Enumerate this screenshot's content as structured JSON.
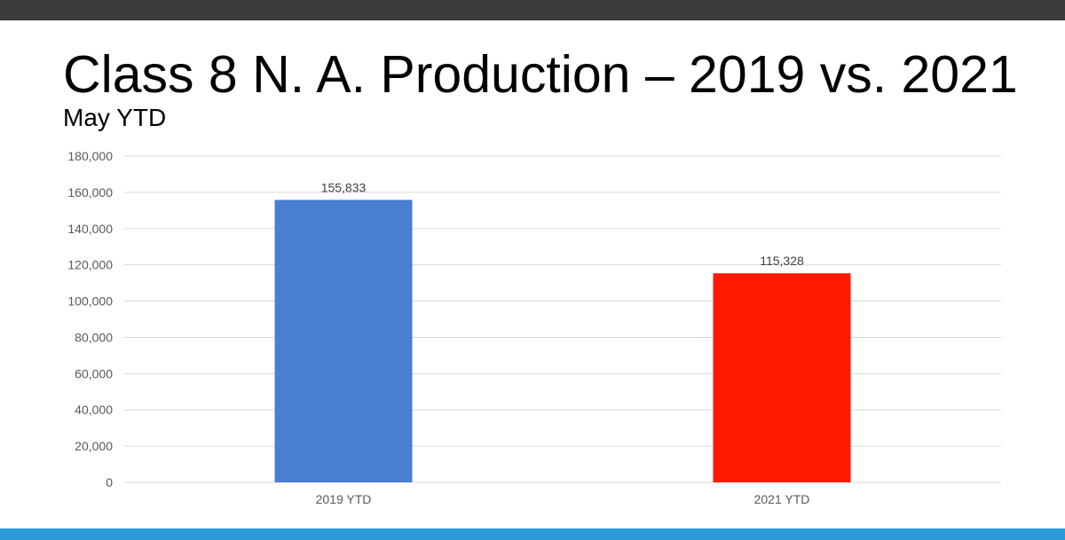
{
  "slide": {
    "title": "Class 8 N. A. Production – 2019 vs. 2021",
    "subtitle": "May YTD"
  },
  "colors": {
    "top_band": "#3c3c3c",
    "bottom_band": "#2c9ad6",
    "gridline": "#d9d9d9",
    "axis_text": "#595959"
  },
  "chart_data": {
    "type": "bar",
    "categories": [
      "2019 YTD",
      "2021 YTD"
    ],
    "values": [
      155833,
      115328
    ],
    "data_labels": [
      "155,833",
      "115,328"
    ],
    "bar_colors": [
      "#4a7fd0",
      "#ff1a00"
    ],
    "ylim": [
      0,
      180000
    ],
    "y_ticks": [
      0,
      20000,
      40000,
      60000,
      80000,
      100000,
      120000,
      140000,
      160000,
      180000
    ],
    "y_tick_labels": [
      "0",
      "20,000",
      "40,000",
      "60,000",
      "80,000",
      "100,000",
      "120,000",
      "140,000",
      "160,000",
      "180,000"
    ],
    "grid": true,
    "legend": "none"
  }
}
